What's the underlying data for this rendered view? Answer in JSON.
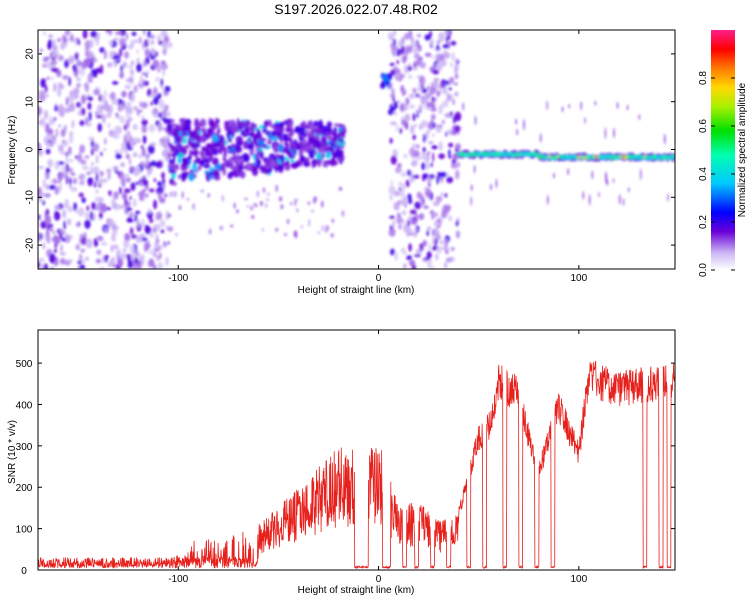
{
  "title": "S197.2026.022.07.48.R02",
  "colors": {
    "snr_line": "#e8201c",
    "spectro_core": "#6a00d8",
    "background": "#ffffff"
  },
  "chart_data": [
    {
      "type": "heatmap",
      "name": "spectrogram",
      "xlabel": "Height of straight line (km)",
      "ylabel": "Frequency (Hz)",
      "xlim": [
        -170,
        148
      ],
      "ylim": [
        -25,
        25
      ],
      "xticks": [
        -100,
        0,
        100
      ],
      "yticks": [
        -20,
        -10,
        0,
        10,
        20
      ],
      "colorbar": {
        "label": "Normalized spectral amplitude",
        "range": [
          0,
          1
        ],
        "ticks": [
          "0.0",
          "0.2",
          "0.4",
          "0.6",
          "0.8"
        ]
      },
      "features": [
        {
          "label": "noise",
          "x_range": [
            -170,
            -104
          ],
          "freq_range": [
            -25,
            25
          ],
          "level": 0.1
        },
        {
          "label": "signal band",
          "x_range": [
            -105,
            -17
          ],
          "center_freq": 0.5,
          "level": 0.3
        },
        {
          "label": "burst",
          "x_range": [
            2,
            6
          ],
          "center_freq": 14,
          "level": 0.3
        },
        {
          "label": "noise",
          "x_range": [
            6,
            40
          ],
          "freq_range": [
            -25,
            25
          ],
          "level": 0.1
        },
        {
          "label": "carrier",
          "x_range": [
            40,
            148
          ],
          "center_freq": -1,
          "level": 0.8
        }
      ]
    },
    {
      "type": "line",
      "name": "snr",
      "xlabel": "Height of straight line (km)",
      "ylabel": "SNR (10 * v/v)",
      "xlim": [
        -170,
        148
      ],
      "ylim": [
        0,
        580
      ],
      "xticks": [
        -100,
        0,
        100
      ],
      "yticks": [
        0,
        100,
        200,
        300,
        400,
        500
      ],
      "envelope_x": [
        -170,
        -110,
        -100,
        -90,
        -80,
        -60,
        -40,
        -20,
        -10,
        0,
        10,
        20,
        30,
        40,
        50,
        55,
        60,
        65,
        70,
        75,
        80,
        85,
        90,
        100,
        105,
        110,
        120,
        130,
        148
      ],
      "envelope_y": [
        15,
        20,
        35,
        80,
        70,
        110,
        200,
        300,
        290,
        320,
        150,
        170,
        120,
        150,
        350,
        380,
        500,
        480,
        470,
        350,
        260,
        350,
        430,
        310,
        520,
        500,
        480,
        490,
        500
      ],
      "dropouts": [
        [
          -12,
          -5
        ],
        [
          2,
          6
        ],
        [
          12,
          14
        ],
        [
          18,
          20
        ],
        [
          26,
          28
        ],
        [
          34,
          36
        ],
        [
          44,
          46
        ],
        [
          52,
          54
        ],
        [
          62,
          64
        ],
        [
          70,
          72
        ],
        [
          78,
          80
        ],
        [
          86,
          88
        ],
        [
          132,
          134
        ],
        [
          140,
          142
        ],
        [
          144,
          146
        ]
      ]
    }
  ]
}
